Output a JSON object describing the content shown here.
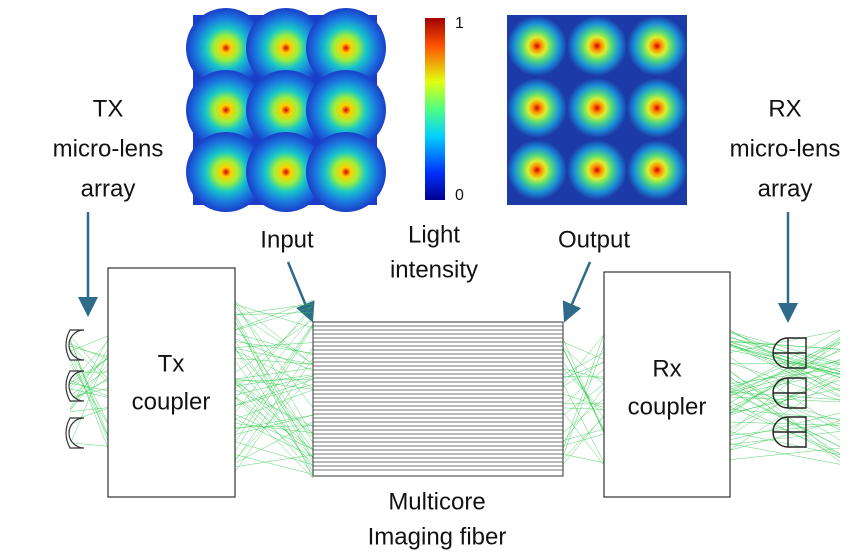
{
  "tx_label": {
    "lines": [
      "TX",
      "micro-lens",
      "array"
    ]
  },
  "rx_label": {
    "lines": [
      "RX",
      "micro-lens",
      "array"
    ]
  },
  "colorbar": {
    "max": 1,
    "min": 0
  },
  "input_label": "Input",
  "output_label": "Output",
  "intensity_label": {
    "lines": [
      "Light",
      "intensity"
    ]
  },
  "tx_coupler": {
    "lines": [
      "Tx",
      "coupler"
    ]
  },
  "rx_coupler": {
    "lines": [
      "Rx",
      "coupler"
    ]
  },
  "fiber_label": {
    "lines": [
      "Multicore",
      "Imaging fiber"
    ]
  }
}
